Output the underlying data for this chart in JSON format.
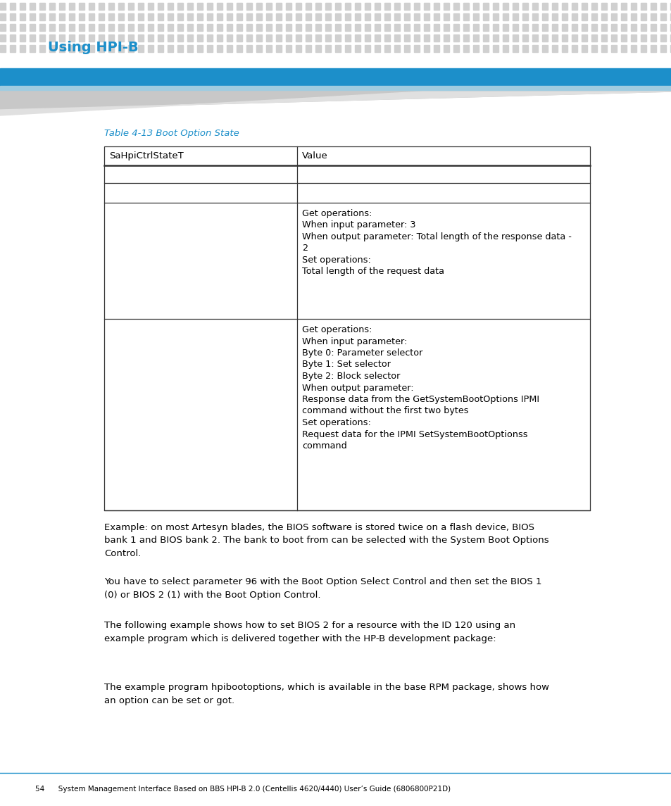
{
  "page_bg": "#ffffff",
  "header_bg_blue": "#1c8fca",
  "header_text": "Using HPI-B",
  "header_text_color": "#1c8fca",
  "table_title": "Table 4-13 Boot Option State",
  "table_title_color": "#1c8fca",
  "col1_header": "SaHpiCtrlStateT",
  "col2_header": "Value",
  "row3_col2_lines": [
    "Get operations:",
    "When input parameter: 3",
    "When output parameter: Total length of the response data -",
    "2",
    "Set operations:",
    "Total length of the request data"
  ],
  "row4_col2_lines": [
    "Get operations:",
    "When input parameter:",
    "Byte 0: Parameter selector",
    "Byte 1: Set selector",
    "Byte 2: Block selector",
    "When output parameter:",
    "Response data from the GetSystemBootOptions IPMI",
    "command without the first two bytes",
    "Set operations:",
    "Request data for the IPMI SetSystemBootOptionss",
    "command"
  ],
  "para1": "Example: on most Artesyn blades, the BIOS software is stored twice on a flash device, BIOS\nbank 1 and BIOS bank 2. The bank to boot from can be selected with the System Boot Options\nControl.",
  "para2": "You have to select parameter 96 with the Boot Option Select Control and then set the BIOS 1\n(0) or BIOS 2 (1) with the Boot Option Control.",
  "para3": "The following example shows how to set BIOS 2 for a resource with the ID 120 using an\nexample program which is delivered together with the HP-B development package:",
  "para4": "The example program hpibootoptions, which is available in the base RPM package, shows how\nan option can be set or got.",
  "footer_text": "54      System Management Interface Based on BBS HPI-B 2.0 (Centellis 4620/4440) User’s Guide (6806800P21D)",
  "footer_line_color": "#1c8fca"
}
